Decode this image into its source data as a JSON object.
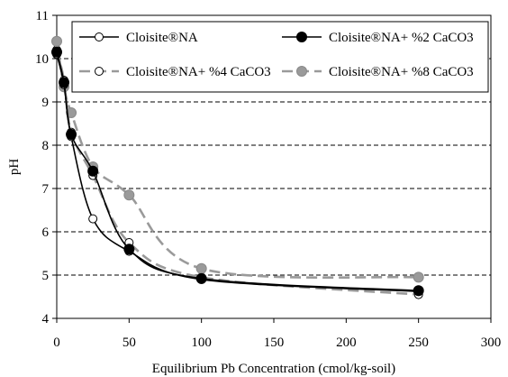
{
  "chart_data": {
    "type": "line",
    "title": "",
    "xlabel": "Equilibrium Pb Concentration (cmol/kg-soil)",
    "ylabel": "pH",
    "xlim": [
      0,
      300
    ],
    "ylim": [
      4,
      11
    ],
    "x_ticks": [
      0,
      50,
      100,
      150,
      200,
      250,
      300
    ],
    "y_ticks": [
      4,
      5,
      6,
      7,
      8,
      9,
      10,
      11
    ],
    "grid": "horizontal dashed",
    "legend_position": "top",
    "series": [
      {
        "name": "Cloisite®NA",
        "style": "solid",
        "marker": "open-circle",
        "color": "#000000",
        "x": [
          0,
          5,
          10,
          25,
          50,
          100,
          250
        ],
        "y": [
          10.1,
          9.4,
          8.2,
          6.3,
          5.55,
          4.9,
          4.62
        ]
      },
      {
        "name": "Cloisite®NA+ %2 CaCO3",
        "style": "solid",
        "marker": "filled-circle",
        "color": "#000000",
        "x": [
          0,
          5,
          10,
          25,
          50,
          100,
          250
        ],
        "y": [
          10.15,
          9.45,
          8.25,
          7.4,
          5.6,
          4.92,
          4.64
        ]
      },
      {
        "name": "Cloisite®NA+ %4 CaCO3",
        "style": "dashed",
        "marker": "open-circle",
        "color": "#9a9a9a",
        "x": [
          0,
          5,
          10,
          25,
          50,
          100,
          250
        ],
        "y": [
          10.2,
          9.5,
          8.3,
          7.3,
          5.75,
          4.95,
          4.55
        ]
      },
      {
        "name": "Cloisite®NA+ %8 CaCO3",
        "style": "dashed",
        "marker": "filled-circle",
        "color": "#9a9a9a",
        "x": [
          0,
          5,
          10,
          25,
          50,
          100,
          250
        ],
        "y": [
          10.4,
          9.35,
          8.75,
          7.5,
          6.85,
          5.15,
          4.95
        ]
      }
    ]
  }
}
